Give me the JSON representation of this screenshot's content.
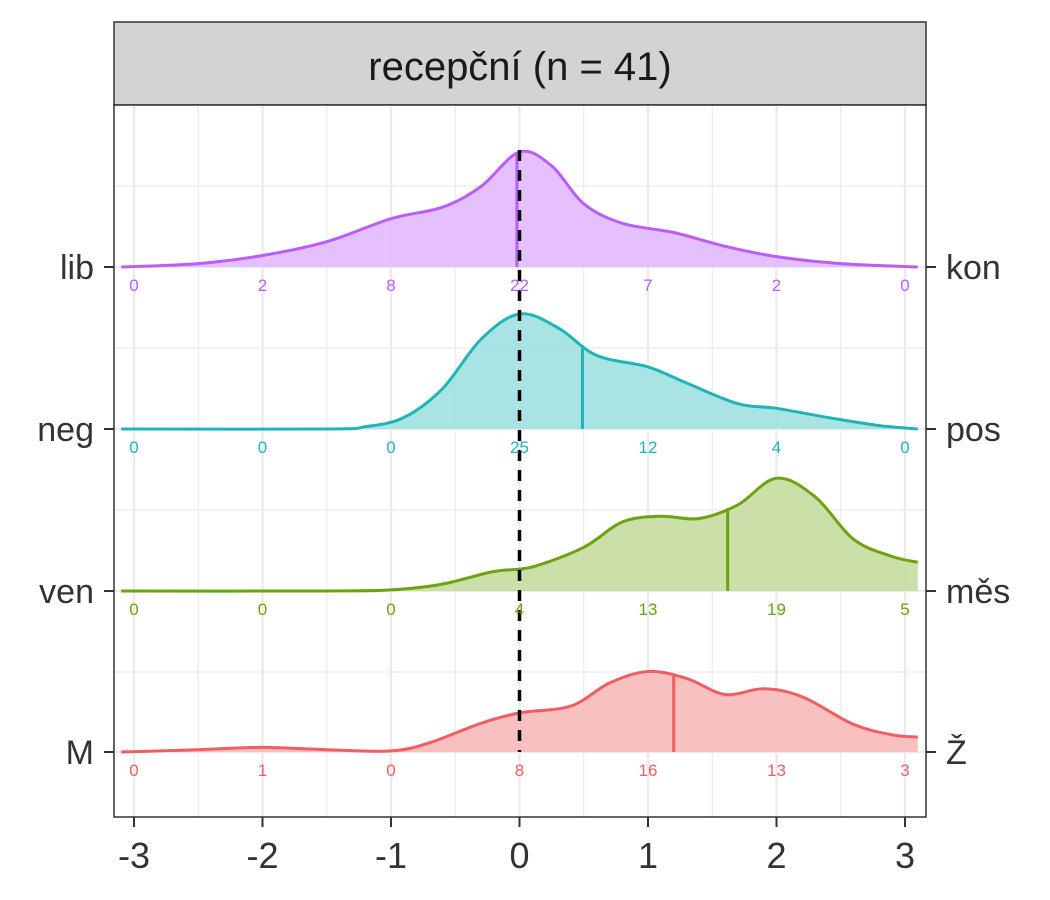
{
  "chart_data": {
    "type": "ridgeline-density",
    "facet_title": "recepční (n = 41)",
    "xlim": [
      -3,
      3
    ],
    "x_ticks": [
      -3,
      -2,
      -1,
      0,
      1,
      2,
      3
    ],
    "x_tick_labels": [
      "-3",
      "-2",
      "-1",
      "0",
      "1",
      "2",
      "3"
    ],
    "reference_line_x": 0,
    "grid": true,
    "count_positions": [
      -3,
      -2,
      -1,
      0,
      1,
      2,
      3
    ],
    "series": [
      {
        "left_label": "lib",
        "right_label": "kon",
        "color": "#BB5DF9",
        "fill": "#E2BBFF",
        "mean": -0.02,
        "counts": [
          "0",
          "2",
          "8",
          "22",
          "7",
          "2",
          "0"
        ],
        "density": [
          [
            -3.1,
            0.0
          ],
          [
            -2.5,
            0.03
          ],
          [
            -2.0,
            0.1
          ],
          [
            -1.5,
            0.22
          ],
          [
            -1.0,
            0.42
          ],
          [
            -0.6,
            0.52
          ],
          [
            -0.3,
            0.7
          ],
          [
            0.0,
            1.0
          ],
          [
            0.25,
            0.88
          ],
          [
            0.5,
            0.55
          ],
          [
            0.8,
            0.38
          ],
          [
            1.2,
            0.3
          ],
          [
            1.6,
            0.18
          ],
          [
            2.0,
            0.09
          ],
          [
            2.5,
            0.03
          ],
          [
            3.1,
            0.0
          ]
        ]
      },
      {
        "left_label": "neg",
        "right_label": "pos",
        "color": "#1FB5B8",
        "fill": "#A3E1E1",
        "mean": 0.49,
        "counts": [
          "0",
          "0",
          "0",
          "25",
          "12",
          "4",
          "0"
        ],
        "density": [
          [
            -3.1,
            0.0
          ],
          [
            -1.5,
            0.0
          ],
          [
            -1.2,
            0.02
          ],
          [
            -0.9,
            0.1
          ],
          [
            -0.6,
            0.35
          ],
          [
            -0.3,
            0.78
          ],
          [
            0.0,
            1.0
          ],
          [
            0.3,
            0.88
          ],
          [
            0.6,
            0.64
          ],
          [
            1.0,
            0.54
          ],
          [
            1.3,
            0.4
          ],
          [
            1.7,
            0.22
          ],
          [
            2.0,
            0.18
          ],
          [
            2.4,
            0.1
          ],
          [
            2.8,
            0.03
          ],
          [
            3.1,
            0.0
          ]
        ]
      },
      {
        "left_label": "ven",
        "right_label": "měs",
        "color": "#6CA30E",
        "fill": "#C6DDA1",
        "mean": 1.62,
        "counts": [
          "0",
          "0",
          "0",
          "4",
          "13",
          "19",
          "5"
        ],
        "density": [
          [
            -3.1,
            0.0
          ],
          [
            -1.5,
            0.0
          ],
          [
            -1.0,
            0.01
          ],
          [
            -0.6,
            0.06
          ],
          [
            -0.2,
            0.17
          ],
          [
            0.1,
            0.21
          ],
          [
            0.5,
            0.38
          ],
          [
            0.8,
            0.6
          ],
          [
            1.1,
            0.65
          ],
          [
            1.4,
            0.63
          ],
          [
            1.7,
            0.75
          ],
          [
            2.0,
            0.98
          ],
          [
            2.3,
            0.82
          ],
          [
            2.6,
            0.45
          ],
          [
            2.9,
            0.3
          ],
          [
            3.1,
            0.25
          ]
        ]
      },
      {
        "left_label": "M",
        "right_label": "Ž",
        "color": "#F05E63",
        "fill": "#F9BBBB",
        "mean": 1.2,
        "counts": [
          "0",
          "1",
          "0",
          "8",
          "16",
          "13",
          "3"
        ],
        "density": [
          [
            -3.1,
            0.0
          ],
          [
            -2.5,
            0.02
          ],
          [
            -2.0,
            0.04
          ],
          [
            -1.5,
            0.02
          ],
          [
            -1.0,
            0.01
          ],
          [
            -0.7,
            0.08
          ],
          [
            -0.3,
            0.25
          ],
          [
            0.0,
            0.34
          ],
          [
            0.4,
            0.4
          ],
          [
            0.7,
            0.6
          ],
          [
            1.0,
            0.7
          ],
          [
            1.3,
            0.64
          ],
          [
            1.6,
            0.5
          ],
          [
            1.9,
            0.55
          ],
          [
            2.2,
            0.48
          ],
          [
            2.6,
            0.24
          ],
          [
            2.9,
            0.15
          ],
          [
            3.1,
            0.13
          ]
        ]
      }
    ]
  }
}
